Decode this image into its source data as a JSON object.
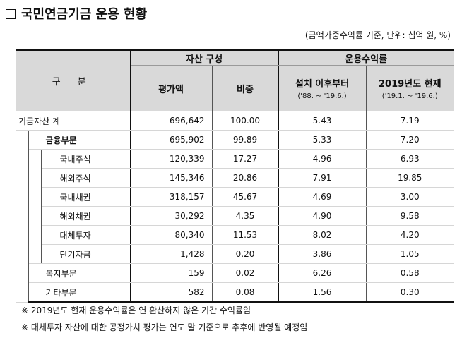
{
  "title": "국민연금기금 운용 현황",
  "unit_note": "(금액가중수익률 기준, 단위: 십억 원, %)",
  "header": {
    "category": "구 분",
    "asset_group": "자산 구성",
    "return_group": "운용수익률",
    "valuation": "평가액",
    "share": "비중",
    "since_inception": "설치 이후부터",
    "since_inception_period": "('88. ~ '19.6.)",
    "ytd": "2019년도 현재",
    "ytd_period": "('19.1. ~ '19.6.)"
  },
  "rows": [
    {
      "label": "기금자산 계",
      "valuation": "696,642",
      "share": "100.00",
      "since": "5.43",
      "ytd": "7.19"
    },
    {
      "label": "금융부문",
      "valuation": "695,902",
      "share": "99.89",
      "since": "5.33",
      "ytd": "7.20"
    },
    {
      "label": "국내주식",
      "valuation": "120,339",
      "share": "17.27",
      "since": "4.96",
      "ytd": "6.93"
    },
    {
      "label": "해외주식",
      "valuation": "145,346",
      "share": "20.86",
      "since": "7.91",
      "ytd": "19.85"
    },
    {
      "label": "국내채권",
      "valuation": "318,157",
      "share": "45.67",
      "since": "4.69",
      "ytd": "3.00"
    },
    {
      "label": "해외채권",
      "valuation": "30,292",
      "share": "4.35",
      "since": "4.90",
      "ytd": "9.58"
    },
    {
      "label": "대체투자",
      "valuation": "80,340",
      "share": "11.53",
      "since": "8.02",
      "ytd": "4.20"
    },
    {
      "label": "단기자금",
      "valuation": "1,428",
      "share": "0.20",
      "since": "3.86",
      "ytd": "1.05"
    },
    {
      "label": "복지부문",
      "valuation": "159",
      "share": "0.02",
      "since": "6.26",
      "ytd": "0.58"
    },
    {
      "label": "기타부문",
      "valuation": "582",
      "share": "0.08",
      "since": "1.56",
      "ytd": "0.30"
    }
  ],
  "notes": [
    "※ 2019년도 현재 운용수익률은 연 환산하지 않은 기간 수익률임",
    "※ 대체투자 자산에 대한 공정가치 평가는 연도 말 기준으로 추후에 반영될 예정임"
  ]
}
